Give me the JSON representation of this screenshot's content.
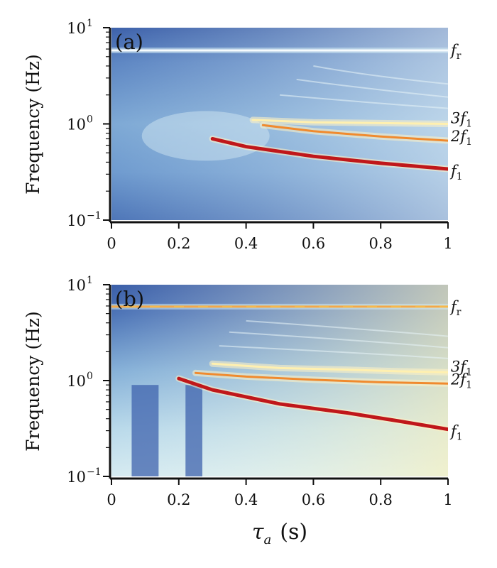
{
  "chart_data": [
    {
      "type": "heatmap",
      "panel_label": "(a)",
      "ylabel": "Frequency (Hz)",
      "xlabel": "",
      "xlim": [
        0,
        1
      ],
      "ylim": [
        0.1,
        10
      ],
      "yscale": "log",
      "x_ticks": [
        "0",
        "0.2",
        "0.4",
        "0.6",
        "0.8",
        "1"
      ],
      "y_ticks": [
        {
          "base": "10",
          "exp": "1",
          "value": 10
        },
        {
          "base": "10",
          "exp": "0",
          "value": 1
        },
        {
          "base": "10",
          "exp": "−1",
          "value": 0.1
        }
      ],
      "colormap": [
        "#3a60a8",
        "#6f9bcf",
        "#e9f4f8",
        "#fde68a",
        "#f59e3a",
        "#c11a1a"
      ],
      "bands": [
        {
          "label": "f",
          "sub": "r",
          "points": [
            [
              0,
              5.8
            ],
            [
              0.5,
              5.8
            ],
            [
              1,
              5.8
            ]
          ],
          "intensity": 0.15
        },
        {
          "label": "3f",
          "sub": "1",
          "points": [
            [
              0.42,
              1.1
            ],
            [
              0.6,
              1.04
            ],
            [
              0.8,
              1.02
            ],
            [
              1,
              1.0
            ]
          ],
          "intensity": 0.35
        },
        {
          "label": "2f",
          "sub": "1",
          "points": [
            [
              0.45,
              0.97
            ],
            [
              0.6,
              0.84
            ],
            [
              0.8,
              0.74
            ],
            [
              1,
              0.67
            ]
          ],
          "intensity": 0.8
        },
        {
          "label": "f",
          "sub": "1",
          "points": [
            [
              0.3,
              0.7
            ],
            [
              0.4,
              0.58
            ],
            [
              0.6,
              0.46
            ],
            [
              0.8,
              0.39
            ],
            [
              1,
              0.34
            ]
          ],
          "intensity": 1.0
        }
      ]
    },
    {
      "type": "heatmap",
      "panel_label": "(b)",
      "ylabel": "Frequency (Hz)",
      "xlabel": "τa (s)",
      "xlabel_main": "τ",
      "xlabel_sub": "a",
      "xlabel_unit": "(s)",
      "xlim": [
        0,
        1
      ],
      "ylim": [
        0.1,
        10
      ],
      "yscale": "log",
      "x_ticks": [
        "0",
        "0.2",
        "0.4",
        "0.6",
        "0.8",
        "1"
      ],
      "y_ticks": [
        {
          "base": "10",
          "exp": "1",
          "value": 10
        },
        {
          "base": "10",
          "exp": "0",
          "value": 1
        },
        {
          "base": "10",
          "exp": "−1",
          "value": 0.1
        }
      ],
      "colormap": [
        "#3a60a8",
        "#6f9bcf",
        "#e9f4f8",
        "#fde68a",
        "#f59e3a",
        "#c11a1a"
      ],
      "bands": [
        {
          "label": "f",
          "sub": "r",
          "points": [
            [
              0,
              5.9
            ],
            [
              0.5,
              5.9
            ],
            [
              1,
              5.9
            ]
          ],
          "intensity": 0.55
        },
        {
          "label": "3f",
          "sub": "1",
          "points": [
            [
              0.3,
              1.5
            ],
            [
              0.5,
              1.35
            ],
            [
              0.7,
              1.3
            ],
            [
              0.85,
              1.25
            ],
            [
              1,
              1.22
            ]
          ],
          "intensity": 0.45
        },
        {
          "label": "2f",
          "sub": "1",
          "points": [
            [
              0.25,
              1.2
            ],
            [
              0.4,
              1.1
            ],
            [
              0.6,
              1.02
            ],
            [
              0.8,
              0.96
            ],
            [
              1,
              0.93
            ]
          ],
          "intensity": 0.75
        },
        {
          "label": "f",
          "sub": "1",
          "points": [
            [
              0.2,
              1.05
            ],
            [
              0.3,
              0.8
            ],
            [
              0.5,
              0.57
            ],
            [
              0.7,
              0.46
            ],
            [
              0.85,
              0.38
            ],
            [
              1,
              0.31
            ]
          ],
          "intensity": 1.0
        }
      ]
    }
  ]
}
